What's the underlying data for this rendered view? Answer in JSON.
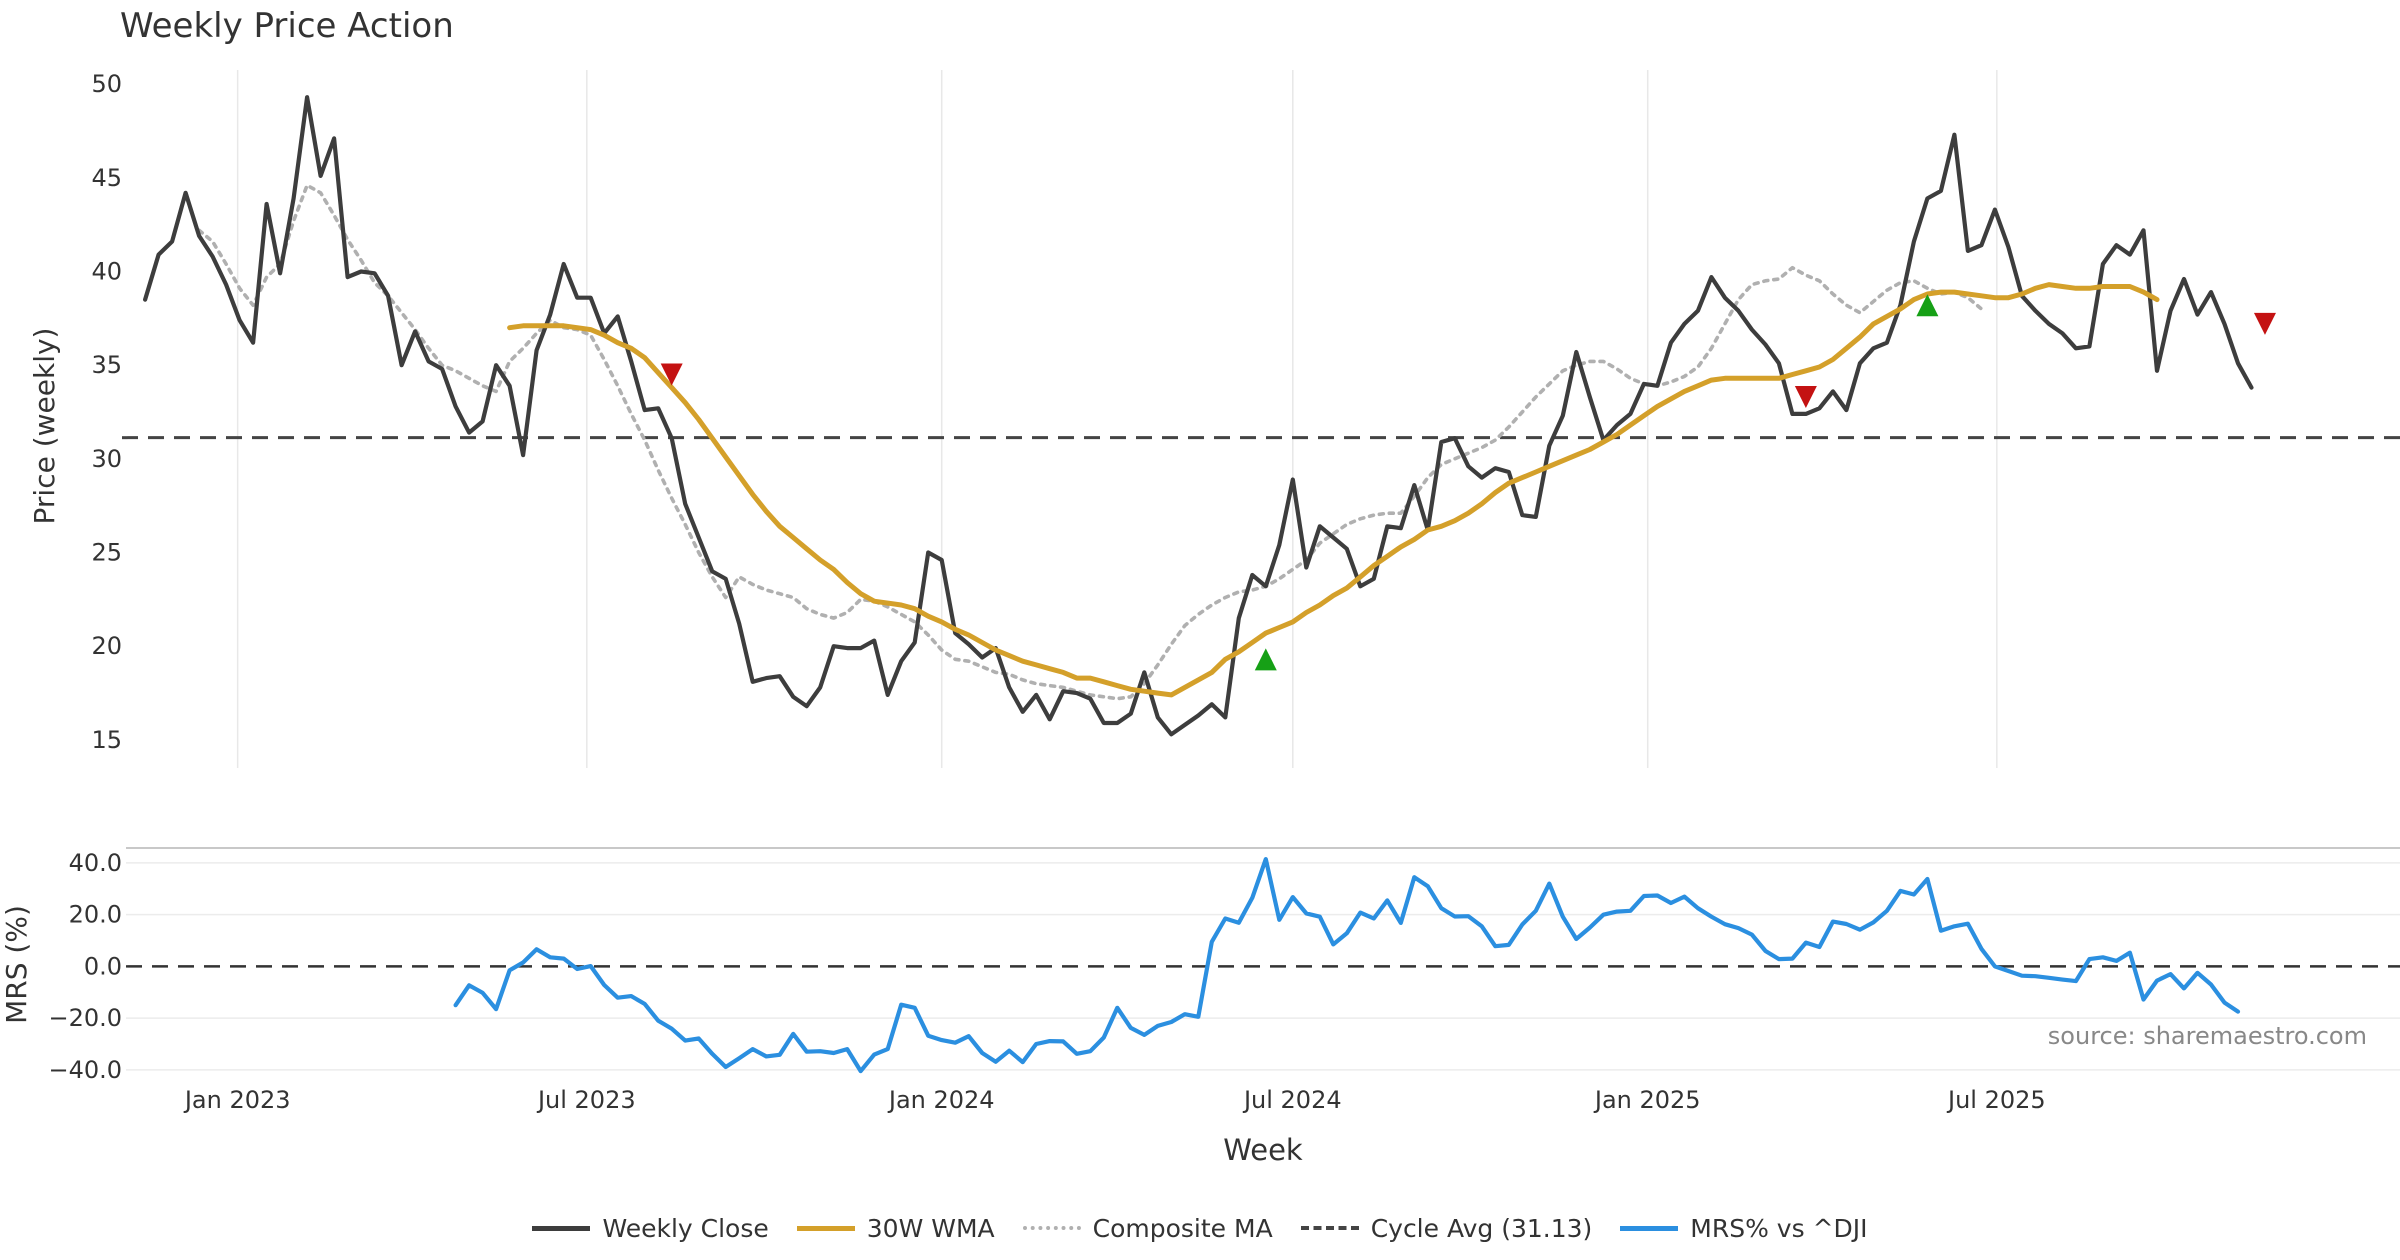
{
  "chart_data": [
    {
      "type": "line",
      "title": "Weekly Price Action",
      "ylabel": "Price (weekly)",
      "xlabel": "",
      "ylim": [
        13.5,
        51.5
      ],
      "yticks": [
        15,
        20,
        25,
        30,
        35,
        40,
        45,
        50
      ],
      "x_start": "2022-11-01",
      "x_end": "2026-01-26",
      "grid": "vertical",
      "series": [
        {
          "name": "Weekly Close",
          "color": "#3d3d3d",
          "style": "solid",
          "start": "2022-11-14",
          "values": [
            38.5,
            40.9,
            41.6,
            44.2,
            41.9,
            40.8,
            39.3,
            37.4,
            36.2,
            43.6,
            39.9,
            43.9,
            49.3,
            45.1,
            47.1,
            39.7,
            40.0,
            39.9,
            38.7,
            35.0,
            36.8,
            35.2,
            34.8,
            32.8,
            31.4,
            32.0,
            35.0,
            33.9,
            30.2,
            35.8,
            37.7,
            40.4,
            38.6,
            38.6,
            36.7,
            37.6,
            35.2,
            32.6,
            32.7,
            31.1,
            27.6,
            25.8,
            24.0,
            23.6,
            21.2,
            18.1,
            18.3,
            18.4,
            17.3,
            16.8,
            17.8,
            20.0,
            19.9,
            19.9,
            20.3,
            17.4,
            19.2,
            20.2,
            25.0,
            24.6,
            20.7,
            20.1,
            19.4,
            19.9,
            17.8,
            16.5,
            17.4,
            16.1,
            17.6,
            17.5,
            17.2,
            15.9,
            15.9,
            16.4,
            18.6,
            16.2,
            15.3,
            15.8,
            16.3,
            16.9,
            16.2,
            21.5,
            23.8,
            23.2,
            25.4,
            28.9,
            24.2,
            26.4,
            25.8,
            25.2,
            23.2,
            23.6,
            26.4,
            26.3,
            28.6,
            26.2,
            30.9,
            31.1,
            29.6,
            29.0,
            29.5,
            29.3,
            27.0,
            26.9,
            30.7,
            32.3,
            35.7,
            33.3,
            31.0,
            31.8,
            32.4,
            34.0,
            33.9,
            36.2,
            37.2,
            37.9,
            39.7,
            38.6,
            37.9,
            36.9,
            36.1,
            35.1,
            32.4,
            32.4,
            32.7,
            33.6,
            32.6,
            35.1,
            35.9,
            36.2,
            38.2,
            41.6,
            43.9,
            44.3,
            47.3,
            41.1,
            41.4,
            43.3,
            41.3,
            38.7,
            37.9,
            37.2,
            36.7,
            35.9,
            36.0,
            40.4,
            41.4,
            40.9,
            42.2,
            34.7,
            37.9,
            39.6,
            37.7,
            38.9,
            37.2,
            35.1,
            33.8
          ]
        },
        {
          "name": "30W WMA",
          "color": "#d4a02a",
          "style": "solid",
          "start": "2023-05-22",
          "values": [
            37.0,
            37.1,
            37.1,
            37.1,
            37.1,
            37.0,
            36.9,
            36.6,
            36.2,
            35.9,
            35.4,
            34.6,
            33.8,
            33.0,
            32.1,
            31.1,
            30.1,
            29.1,
            28.1,
            27.2,
            26.4,
            25.8,
            25.2,
            24.6,
            24.1,
            23.4,
            22.8,
            22.4,
            22.3,
            22.2,
            22.0,
            21.6,
            21.3,
            20.9,
            20.6,
            20.2,
            19.8,
            19.5,
            19.2,
            19.0,
            18.8,
            18.6,
            18.3,
            18.3,
            18.1,
            17.9,
            17.7,
            17.6,
            17.5,
            17.4,
            17.8,
            18.2,
            18.6,
            19.3,
            19.7,
            20.2,
            20.7,
            21.0,
            21.3,
            21.8,
            22.2,
            22.7,
            23.1,
            23.7,
            24.3,
            24.8,
            25.3,
            25.7,
            26.2,
            26.4,
            26.7,
            27.1,
            27.6,
            28.2,
            28.7,
            29.0,
            29.3,
            29.6,
            29.9,
            30.2,
            30.5,
            30.9,
            31.3,
            31.8,
            32.3,
            32.8,
            33.2,
            33.6,
            33.9,
            34.2,
            34.3,
            34.3,
            34.3,
            34.3,
            34.3,
            34.5,
            34.7,
            34.9,
            35.3,
            35.9,
            36.5,
            37.2,
            37.6,
            38.0,
            38.5,
            38.8,
            38.9,
            38.9,
            38.8,
            38.7,
            38.6,
            38.6,
            38.8,
            39.1,
            39.3,
            39.2,
            39.1,
            39.1,
            39.2,
            39.2,
            39.2,
            38.9,
            38.5
          ]
        },
        {
          "name": "Composite MA",
          "color": "#b0b0b0",
          "style": "dotted",
          "start": "2022-12-12",
          "values": [
            42.2,
            41.6,
            40.4,
            39.1,
            38.2,
            39.7,
            40.4,
            42.7,
            44.6,
            44.2,
            43.0,
            41.7,
            40.6,
            39.4,
            38.7,
            37.8,
            36.9,
            35.9,
            35.0,
            34.7,
            34.3,
            33.9,
            33.6,
            35.2,
            35.9,
            36.7,
            37.4,
            37.0,
            36.9,
            36.6,
            35.3,
            33.9,
            32.4,
            31.0,
            29.4,
            27.9,
            26.5,
            25.0,
            23.7,
            22.6,
            23.7,
            23.3,
            23.0,
            22.8,
            22.6,
            22.0,
            21.7,
            21.5,
            21.8,
            22.5,
            22.4,
            22.1,
            21.7,
            21.3,
            20.6,
            19.8,
            19.3,
            19.2,
            18.9,
            18.6,
            18.5,
            18.2,
            18.0,
            17.9,
            17.8,
            17.6,
            17.4,
            17.3,
            17.2,
            17.3,
            18.0,
            19.0,
            20.1,
            21.1,
            21.7,
            22.2,
            22.6,
            22.9,
            23.0,
            23.2,
            23.6,
            24.1,
            24.6,
            25.5,
            26.0,
            26.5,
            26.8,
            27.0,
            27.1,
            27.1,
            28.0,
            29.0,
            29.7,
            30.0,
            30.3,
            30.6,
            31.0,
            31.7,
            32.5,
            33.3,
            34.0,
            34.7,
            35.0,
            35.2,
            35.2,
            34.8,
            34.3,
            34.0,
            33.9,
            34.1,
            34.4,
            34.9,
            35.9,
            37.2,
            38.5,
            39.3,
            39.5,
            39.6,
            40.2,
            39.8,
            39.5,
            38.8,
            38.2,
            37.8,
            38.4,
            39.0,
            39.4,
            39.5,
            39.1,
            38.8,
            38.9,
            38.6,
            38.0
          ]
        }
      ],
      "reference_line": {
        "name": "Cycle Avg (31.13)",
        "value": 31.13,
        "color": "#444444",
        "style": "dashed"
      },
      "markers": [
        {
          "kind": "sell",
          "date": "2023-08-14",
          "value": 34.5,
          "color": "#c41212"
        },
        {
          "kind": "buy",
          "date": "2024-06-17",
          "value": 19.3,
          "color": "#16a016"
        },
        {
          "kind": "sell",
          "date": "2025-03-24",
          "value": 33.3,
          "color": "#c41212"
        },
        {
          "kind": "buy",
          "date": "2025-05-26",
          "value": 38.2,
          "color": "#16a016"
        },
        {
          "kind": "sell",
          "date": "2025-11-17",
          "value": 37.2,
          "color": "#c41212"
        }
      ]
    },
    {
      "type": "line",
      "title": "",
      "ylabel": "MRS (%)",
      "xlabel": "Week",
      "ylim": [
        -42,
        45
      ],
      "yticks": [
        -40,
        -20,
        0,
        20,
        40
      ],
      "ytick_labels": [
        "−40.0",
        "−20.0",
        "0.0",
        "20.0",
        "40.0"
      ],
      "xticks": [
        "2023-01-01",
        "2023-07-01",
        "2024-01-01",
        "2024-07-01",
        "2025-01-01",
        "2025-07-01"
      ],
      "xtick_labels": [
        "Jan 2023",
        "Jul 2023",
        "Jan 2024",
        "Jul 2024",
        "Jan 2025",
        "Jul 2025"
      ],
      "grid": "horizontal",
      "series": [
        {
          "name": "MRS% vs ^DJI",
          "color": "#2b8fe0",
          "style": "solid",
          "start": "2023-04-24",
          "values": [
            -15.0,
            -7.3,
            -10.2,
            -16.5,
            -1.5,
            1.5,
            6.6,
            3.5,
            3.0,
            -1.0,
            0.1,
            -7.2,
            -12.1,
            -11.5,
            -14.5,
            -21.0,
            -24.1,
            -28.7,
            -27.9,
            -33.8,
            -38.9,
            -35.5,
            -32.0,
            -34.8,
            -34.2,
            -26.1,
            -33.0,
            -32.8,
            -33.5,
            -32.0,
            -40.5,
            -34.1,
            -32.0,
            -14.8,
            -16.0,
            -26.8,
            -28.5,
            -29.5,
            -27.0,
            -33.5,
            -36.9,
            -32.6,
            -37.0,
            -30.0,
            -28.9,
            -29.0,
            -33.8,
            -32.8,
            -27.5,
            -16.0,
            -23.8,
            -26.5,
            -23.0,
            -21.5,
            -18.5,
            -19.5,
            9.5,
            18.5,
            16.9,
            26.5,
            41.5,
            18.0,
            26.8,
            20.5,
            19.2,
            8.5,
            12.8,
            20.8,
            18.5,
            25.5,
            16.8,
            34.5,
            31.0,
            22.5,
            19.3,
            19.4,
            15.5,
            7.8,
            8.3,
            16.2,
            21.5,
            32.0,
            19.2,
            10.6,
            15.0,
            20.0,
            21.2,
            21.5,
            27.2,
            27.4,
            24.5,
            27.0,
            22.5,
            19.2,
            16.3,
            14.8,
            12.3,
            6.0,
            2.8,
            3.0,
            9.2,
            7.5,
            17.3,
            16.4,
            14.2,
            17.0,
            21.5,
            29.2,
            27.8,
            33.8,
            13.8,
            15.5,
            16.5,
            6.8,
            0.0,
            -1.8,
            -3.6,
            -3.8,
            -4.4,
            -5.1,
            -5.7,
            2.8,
            3.5,
            2.1,
            5.3,
            -12.8,
            -5.5,
            -3.0,
            -8.5,
            -2.5,
            -7.0,
            -14.0,
            -17.5
          ]
        }
      ],
      "reference_line": {
        "value": 0,
        "color": "#333333",
        "style": "dashed"
      },
      "annotation": "source: sharemaestro.com"
    }
  ],
  "legend": [
    {
      "label": "Weekly Close",
      "color": "#3d3d3d",
      "style": "solid"
    },
    {
      "label": "30W WMA",
      "color": "#d4a02a",
      "style": "solid"
    },
    {
      "label": "Composite MA",
      "color": "#b0b0b0",
      "style": "dotted"
    },
    {
      "label": "Cycle Avg (31.13)",
      "color": "#444444",
      "style": "dashed"
    },
    {
      "label": "MRS% vs ^DJI",
      "color": "#2b8fe0",
      "style": "solid"
    }
  ]
}
